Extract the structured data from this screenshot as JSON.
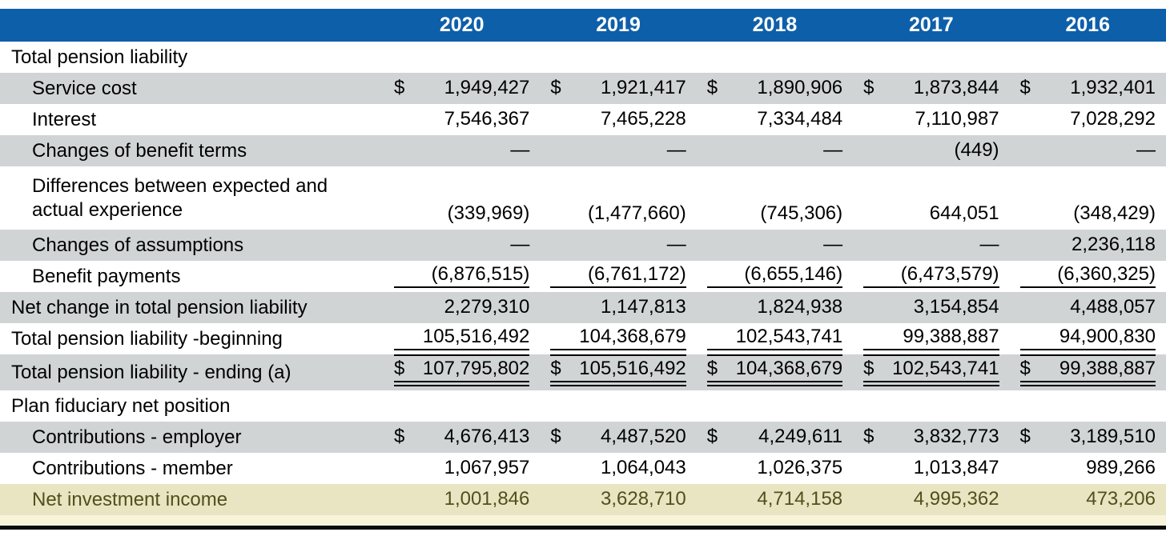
{
  "document": {
    "type": "pension-schedule-table",
    "colors": {
      "header_bg": "#0e5fa9",
      "header_text": "#ffffff",
      "stripe_gray": "#d1d4d5",
      "highlight_bg": "#e9e5c2",
      "highlight_bg_light": "#f7f4da",
      "highlight_text": "#514f1d",
      "rule_black": "#0d0d0d"
    }
  },
  "table": {
    "years": [
      "2020",
      "2019",
      "2018",
      "2017",
      "2016"
    ],
    "rows": [
      {
        "label": "Total pension liability",
        "type": "section",
        "shade": "white"
      },
      {
        "label": "Service cost",
        "indent": true,
        "shade": "gray",
        "dollar": true,
        "values": [
          "1,949,427",
          "1,921,417",
          "1,890,906",
          "1,873,844",
          "1,932,401"
        ]
      },
      {
        "label": "Interest",
        "indent": true,
        "shade": "white",
        "values": [
          "7,546,367",
          "7,465,228",
          "7,334,484",
          "7,110,987",
          "7,028,292"
        ]
      },
      {
        "label": "Changes of benefit terms",
        "indent": true,
        "shade": "gray",
        "values": [
          "—",
          "—",
          "—",
          "(449)",
          "—"
        ]
      },
      {
        "label": "Differences between expected and actual experience",
        "indent": true,
        "shade": "white",
        "twoline": true,
        "values": [
          "(339,969)",
          "(1,477,660)",
          "(745,306)",
          "644,051",
          "(348,429)"
        ]
      },
      {
        "label": "Changes of assumptions",
        "indent": true,
        "shade": "gray",
        "values": [
          "—",
          "—",
          "—",
          "—",
          "2,236,118"
        ]
      },
      {
        "label": "Benefit payments",
        "indent": true,
        "shade": "white",
        "underline": "single",
        "values": [
          "(6,876,515)",
          "(6,761,172)",
          "(6,655,146)",
          "(6,473,579)",
          "(6,360,325)"
        ]
      },
      {
        "label": "Net change in total pension liability",
        "shade": "gray",
        "values": [
          "2,279,310",
          "1,147,813",
          "1,824,938",
          "3,154,854",
          "4,488,057"
        ]
      },
      {
        "label": "Total pension liability -beginning",
        "shade": "white",
        "underline": "single",
        "values": [
          "105,516,492",
          "104,368,679",
          "102,543,741",
          "99,388,887",
          "94,900,830"
        ]
      },
      {
        "label": "Total pension liability - ending (a)",
        "shade": "gray",
        "dollar": true,
        "topline": true,
        "underline": "double",
        "values": [
          "107,795,802",
          "105,516,492",
          "104,368,679",
          "102,543,741",
          "99,388,887"
        ]
      },
      {
        "label": "Plan fiduciary net position",
        "type": "section",
        "shade": "white"
      },
      {
        "label": "Contributions - employer",
        "indent": true,
        "shade": "gray",
        "dollar": true,
        "values": [
          "4,676,413",
          "4,487,520",
          "4,249,611",
          "3,832,773",
          "3,189,510"
        ]
      },
      {
        "label": "Contributions - member",
        "indent": true,
        "shade": "white",
        "values": [
          "1,067,957",
          "1,064,043",
          "1,026,375",
          "1,013,847",
          "989,266"
        ]
      },
      {
        "label": "Net investment income",
        "indent": true,
        "shade": "highlight",
        "values": [
          "1,001,846",
          "3,628,710",
          "4,714,158",
          "4,995,362",
          "473,206"
        ]
      }
    ]
  }
}
